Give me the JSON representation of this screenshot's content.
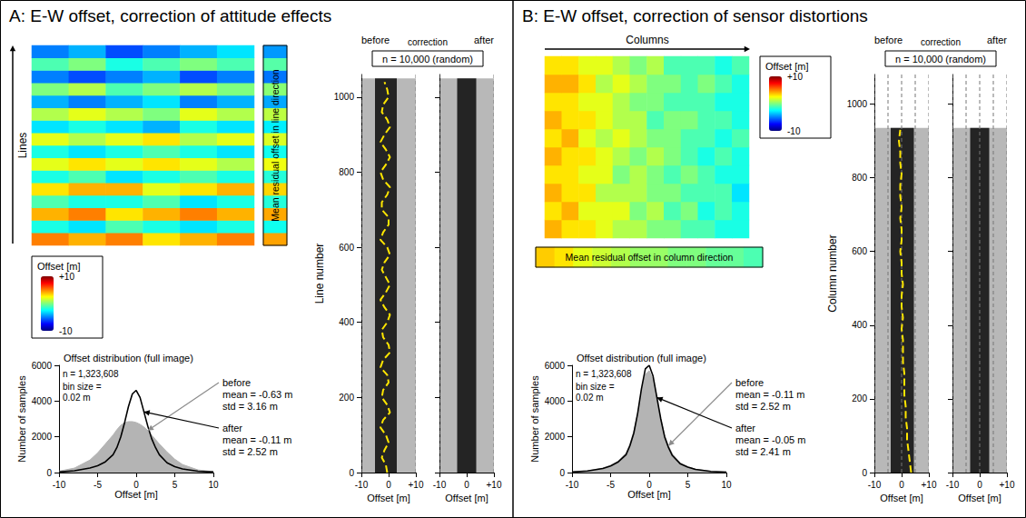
{
  "chart_data": [
    {
      "panel_title": "A: E-W offset, correction of attitude effects",
      "map": {
        "type": "heatmap",
        "direction_label": "Lines",
        "tick_labels": false,
        "rows": [
          [
            5,
            4,
            5,
            3,
            4,
            5
          ],
          [
            -2,
            -3,
            -1,
            -2,
            -3,
            -2
          ],
          [
            4,
            5,
            3,
            4,
            5,
            4
          ],
          [
            -1,
            -2,
            -2,
            -1,
            -3,
            -2
          ],
          [
            3,
            4,
            4,
            2,
            3,
            4
          ],
          [
            -2,
            -1,
            -3,
            -2,
            -1,
            -2
          ],
          [
            2,
            3,
            2,
            3,
            2,
            1
          ],
          [
            -2,
            -3,
            -2,
            -1,
            -2,
            -3
          ],
          [
            2,
            1,
            2,
            3,
            1,
            2
          ],
          [
            -3,
            -2,
            -3,
            -4,
            -2,
            -3
          ],
          [
            1,
            2,
            1,
            0,
            2,
            1
          ],
          [
            -4,
            -5,
            -4,
            -3,
            -5,
            -4
          ],
          [
            0,
            1,
            -1,
            0,
            1,
            0
          ],
          [
            -5,
            -6,
            -5,
            -4,
            -6,
            -5
          ],
          [
            -1,
            0,
            -2,
            -1,
            0,
            -1
          ],
          [
            -5,
            -4,
            -6,
            -5,
            -4,
            -3
          ]
        ]
      },
      "color_bar": {
        "title": "Offset [m]",
        "range": [
          -10,
          10
        ],
        "ticks": [
          {
            "value": 10,
            "label": "+10"
          },
          -10
        ]
      },
      "residual": {
        "type": "heatmap",
        "label": "Mean residual offset in line direction",
        "values": [
          4.3,
          -2.2,
          4.2,
          -1.8,
          3.3,
          -1.8,
          2.2,
          -2.2,
          1.8,
          -2.8,
          1.2,
          -4.2,
          0.2,
          -5.2,
          -0.8,
          -4.5
        ]
      },
      "profiles": {
        "type": "line",
        "header": [
          "before",
          "correction",
          "after"
        ],
        "sample_label": "n = 10,000 (random)",
        "ylabel": "Line number",
        "xlabel": "Offset [m]",
        "xlim": [
          -10,
          10
        ],
        "xticks": [
          -10,
          0,
          {
            "value": 10,
            "label": "+10"
          }
        ],
        "grid_lines": [
          -10,
          10
        ],
        "ylim": [
          0,
          1060
        ],
        "yticks": [
          0,
          200,
          400,
          600,
          800,
          1000
        ],
        "extent": [
          0,
          1050
        ],
        "positions": [
          0,
          20,
          40,
          60,
          80,
          100,
          120,
          140,
          160,
          180,
          200,
          220,
          240,
          260,
          280,
          300,
          320,
          340,
          360,
          380,
          400,
          420,
          440,
          460,
          480,
          500,
          520,
          540,
          560,
          580,
          600,
          620,
          640,
          660,
          680,
          700,
          720,
          740,
          760,
          780,
          800,
          820,
          840,
          860,
          880,
          900,
          920,
          940,
          960,
          980,
          1000,
          1020,
          1040
        ],
        "before": {
          "color": "#ffe600",
          "line_style": "dashed",
          "outer": [
            -10,
            10
          ],
          "core": [
            -5,
            3
          ],
          "mean": [
            -0.5,
            -1,
            -2.5,
            -1.5,
            0,
            -1,
            -3,
            -2,
            0.5,
            -0.5,
            -2.5,
            -2,
            0,
            -0.5,
            -3,
            -2,
            0.5,
            0,
            -2,
            -2.5,
            -0.5,
            0.5,
            -1.5,
            -3,
            -1,
            0.5,
            -1,
            -2.5,
            -1.5,
            0.5,
            -0.5,
            -3,
            -2,
            0,
            0,
            -2.5,
            -2.5,
            -0.5,
            0.5,
            -2,
            -3,
            -1,
            0.5,
            -1,
            -3,
            -1.5,
            0.5,
            -0.5,
            -2.5,
            -2,
            0,
            -0.5,
            -1.5
          ]
        },
        "after": {
          "outer": [
            -10,
            10
          ],
          "core": [
            -3.5,
            3.5
          ]
        }
      },
      "histogram": {
        "type": "line",
        "title": "Offset distribution (full image)",
        "n_label": "n = 1,323,608",
        "bin_label": [
          "bin size =",
          "0.02 m"
        ],
        "xlabel": "Offset [m]",
        "ylabel": "Number of samples",
        "xlim": [
          -10,
          10
        ],
        "xticks": [
          -10,
          -5,
          0,
          5,
          10
        ],
        "ylim": [
          0,
          6000
        ],
        "yticks": [
          0,
          2000,
          4000,
          6000
        ],
        "x": [
          -10,
          -8,
          -6,
          -5,
          -4,
          -3,
          -2.5,
          -2,
          -1.5,
          -1,
          -0.5,
          0,
          0.5,
          1,
          1.5,
          2,
          2.5,
          3,
          4,
          5,
          6,
          8,
          10
        ],
        "series": [
          {
            "name": "before",
            "type": "area",
            "color": "#b4b4b4",
            "stats": [
              "mean = -0.63 m",
              "std = 3.16 m"
            ],
            "values": [
              80,
              250,
              700,
              1100,
              1600,
              2100,
              2400,
              2650,
              2800,
              2850,
              2850,
              2800,
              2700,
              2550,
              2350,
              2100,
              1850,
              1600,
              1150,
              750,
              450,
              150,
              50
            ]
          },
          {
            "name": "after",
            "type": "line",
            "color": "#000000",
            "stats": [
              "mean = -0.11 m",
              "std = 2.52 m"
            ],
            "values": [
              30,
              100,
              250,
              380,
              600,
              1000,
              1400,
              2000,
              2800,
              3700,
              4400,
              4600,
              4200,
              3400,
              2600,
              1900,
              1400,
              1000,
              550,
              330,
              200,
              80,
              30
            ]
          }
        ]
      }
    },
    {
      "panel_title": "B: E-W offset, correction of sensor distortions",
      "map": {
        "type": "heatmap",
        "direction_label": "Columns",
        "tick_labels": false,
        "rows": [
          [
            4,
            3,
            3,
            2,
            1,
            1,
            0,
            0,
            -1,
            -1,
            -2,
            -2
          ],
          [
            3,
            4,
            2,
            2,
            2,
            0,
            1,
            -1,
            0,
            -2,
            -1,
            -2
          ],
          [
            4,
            3,
            3,
            1,
            1,
            1,
            0,
            0,
            -1,
            -1,
            -1,
            -3
          ],
          [
            3,
            3,
            2,
            2,
            0,
            1,
            0,
            -1,
            0,
            -1,
            -2,
            -2
          ],
          [
            4,
            3,
            3,
            2,
            1,
            0,
            1,
            0,
            -1,
            -2,
            -1,
            -2
          ],
          [
            3,
            4,
            2,
            1,
            2,
            1,
            0,
            0,
            -1,
            -1,
            -2,
            -1
          ],
          [
            4,
            3,
            3,
            2,
            1,
            1,
            -1,
            0,
            0,
            -1,
            -1,
            -2
          ],
          [
            3,
            3,
            2,
            2,
            1,
            0,
            0,
            -1,
            -1,
            -1,
            -2,
            -2
          ],
          [
            4,
            4,
            3,
            1,
            2,
            1,
            0,
            0,
            -1,
            0,
            -1,
            -2
          ],
          [
            3,
            3,
            2,
            2,
            1,
            0,
            1,
            -1,
            -1,
            -1,
            -2,
            -1
          ]
        ]
      },
      "color_bar": {
        "title": "Offset [m]",
        "range": [
          -10,
          10
        ],
        "ticks": [
          {
            "value": 10,
            "label": "+10"
          },
          -10
        ]
      },
      "residual": {
        "type": "heatmap",
        "orientation": "horizontal",
        "label": "Mean residual offset in column direction",
        "values": [
          3.5,
          3,
          2,
          1.5,
          1,
          0.5,
          0.5,
          0,
          0,
          -0.5,
          -0.5,
          -1
        ]
      },
      "profiles": {
        "type": "line",
        "header": [
          "before",
          "correction",
          "after"
        ],
        "sample_label": "n = 10,000 (random)",
        "ylabel": "Column number",
        "xlabel": "Offset [m]",
        "xlim": [
          -10,
          10
        ],
        "xticks": [
          -10,
          0,
          {
            "value": 10,
            "label": "+10"
          }
        ],
        "grid_lines": [
          -10,
          -5,
          0,
          5,
          10
        ],
        "ylim": [
          0,
          1080
        ],
        "yticks": [
          0,
          200,
          400,
          600,
          800,
          1000
        ],
        "extent": [
          0,
          935
        ],
        "positions": [
          0,
          30,
          60,
          90,
          120,
          150,
          180,
          210,
          240,
          270,
          300,
          330,
          360,
          390,
          420,
          450,
          480,
          510,
          540,
          570,
          600,
          630,
          660,
          690,
          720,
          750,
          780,
          810,
          840,
          870,
          900,
          930
        ],
        "before": {
          "color": "#ffe600",
          "line_style": "dashed",
          "outer": [
            -10,
            10
          ],
          "core": [
            -4,
            4.5
          ],
          "mean": [
            3.5,
            3,
            2.5,
            2,
            2,
            1.5,
            1.5,
            1,
            1,
            1,
            0.5,
            0.5,
            0.5,
            0,
            0.5,
            0,
            0,
            0.5,
            0,
            0,
            -0.5,
            0,
            0,
            -0.5,
            0,
            -0.5,
            -0.5,
            0,
            -0.5,
            -0.5,
            -1,
            -0.5
          ]
        },
        "after": {
          "outer": [
            -10,
            10
          ],
          "core": [
            -3.5,
            3.5
          ]
        }
      },
      "histogram": {
        "type": "line",
        "title": "Offset distribution (full image)",
        "n_label": "n = 1,323,608",
        "bin_label": [
          "bin size =",
          "0.02 m"
        ],
        "xlabel": "Offset [m]",
        "ylabel": "Number of samples",
        "xlim": [
          -10,
          10
        ],
        "xticks": [
          -10,
          -5,
          0,
          5,
          10
        ],
        "ylim": [
          0,
          6000
        ],
        "yticks": [
          0,
          2000,
          4000,
          6000
        ],
        "x": [
          -10,
          -8,
          -6,
          -5,
          -4,
          -3,
          -2.5,
          -2,
          -1.5,
          -1,
          -0.5,
          0,
          0.5,
          1,
          1.5,
          2,
          2.5,
          3,
          4,
          5,
          6,
          8,
          10
        ],
        "series": [
          {
            "name": "before",
            "type": "area",
            "color": "#b4b4b4",
            "stats": [
              "mean = -0.11 m",
              "std = 2.52 m"
            ],
            "values": [
              30,
              100,
              250,
              400,
              650,
              1100,
              1600,
              2300,
              3300,
              4500,
              5500,
              5700,
              5200,
              4100,
              3000,
              2100,
              1500,
              1050,
              550,
              320,
              190,
              70,
              30
            ]
          },
          {
            "name": "after",
            "type": "line",
            "color": "#000000",
            "stats": [
              "mean = -0.05 m",
              "std = 2.41 m"
            ],
            "values": [
              30,
              90,
              230,
              370,
              600,
              1000,
              1500,
              2200,
              3300,
              4700,
              5800,
              6000,
              5400,
              4200,
              3000,
              2000,
              1400,
              950,
              500,
              300,
              180,
              60,
              25
            ]
          }
        ]
      }
    }
  ]
}
